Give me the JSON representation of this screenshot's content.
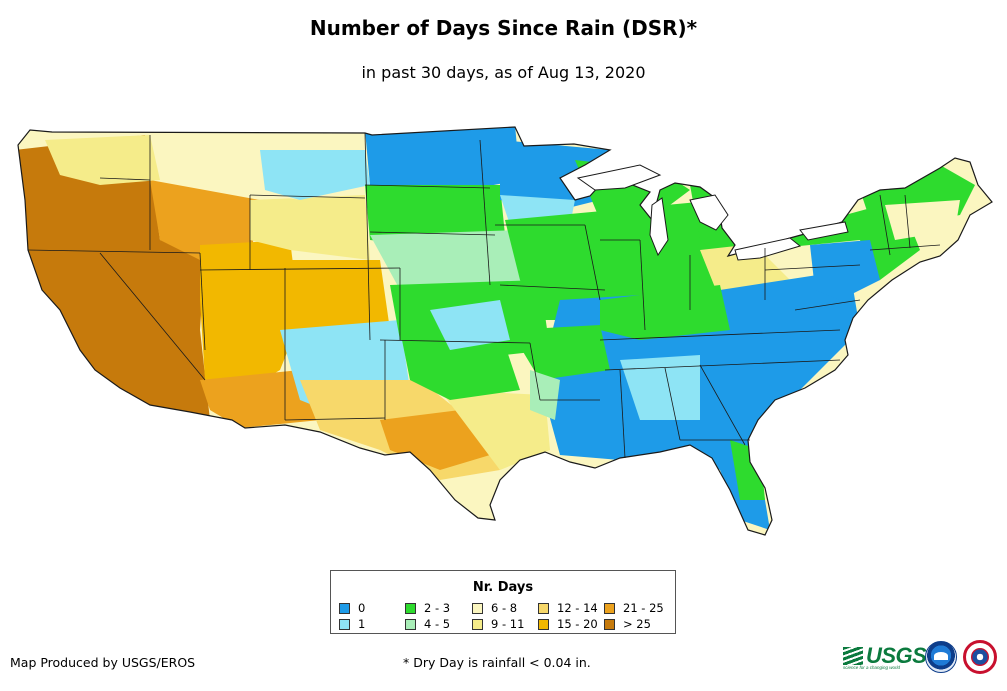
{
  "title": "Number of Days Since Rain (DSR)*",
  "subtitle": "in past 30 days, as of Aug 13, 2020",
  "legend": {
    "title": "Nr. Days",
    "items": [
      {
        "label": "0",
        "color": "#1e9be8"
      },
      {
        "label": "1",
        "color": "#8ee4f5"
      },
      {
        "label": "2 - 3",
        "color": "#2edb2e"
      },
      {
        "label": "4 - 5",
        "color": "#a9eeb8"
      },
      {
        "label": "6 - 8",
        "color": "#fbf6c0"
      },
      {
        "label": "9 - 11",
        "color": "#f5ec8a"
      },
      {
        "label": "12 - 14",
        "color": "#f7d86a"
      },
      {
        "label": "15 - 20",
        "color": "#f2b800"
      },
      {
        "label": "21 - 25",
        "color": "#eca21e"
      },
      {
        "label": "> 25",
        "color": "#c67a0c"
      }
    ]
  },
  "footer": {
    "credit": "Map Produced by USGS/EROS",
    "footnote": "* Dry Day is rainfall < 0.04 in."
  },
  "logos": {
    "usgs": "USGS",
    "usgs_tagline": "science for a changing world",
    "noaa": "NOAA",
    "nws": "National Weather Service"
  },
  "colors": {
    "border": "#1a1a1a",
    "background": "#ffffff"
  }
}
